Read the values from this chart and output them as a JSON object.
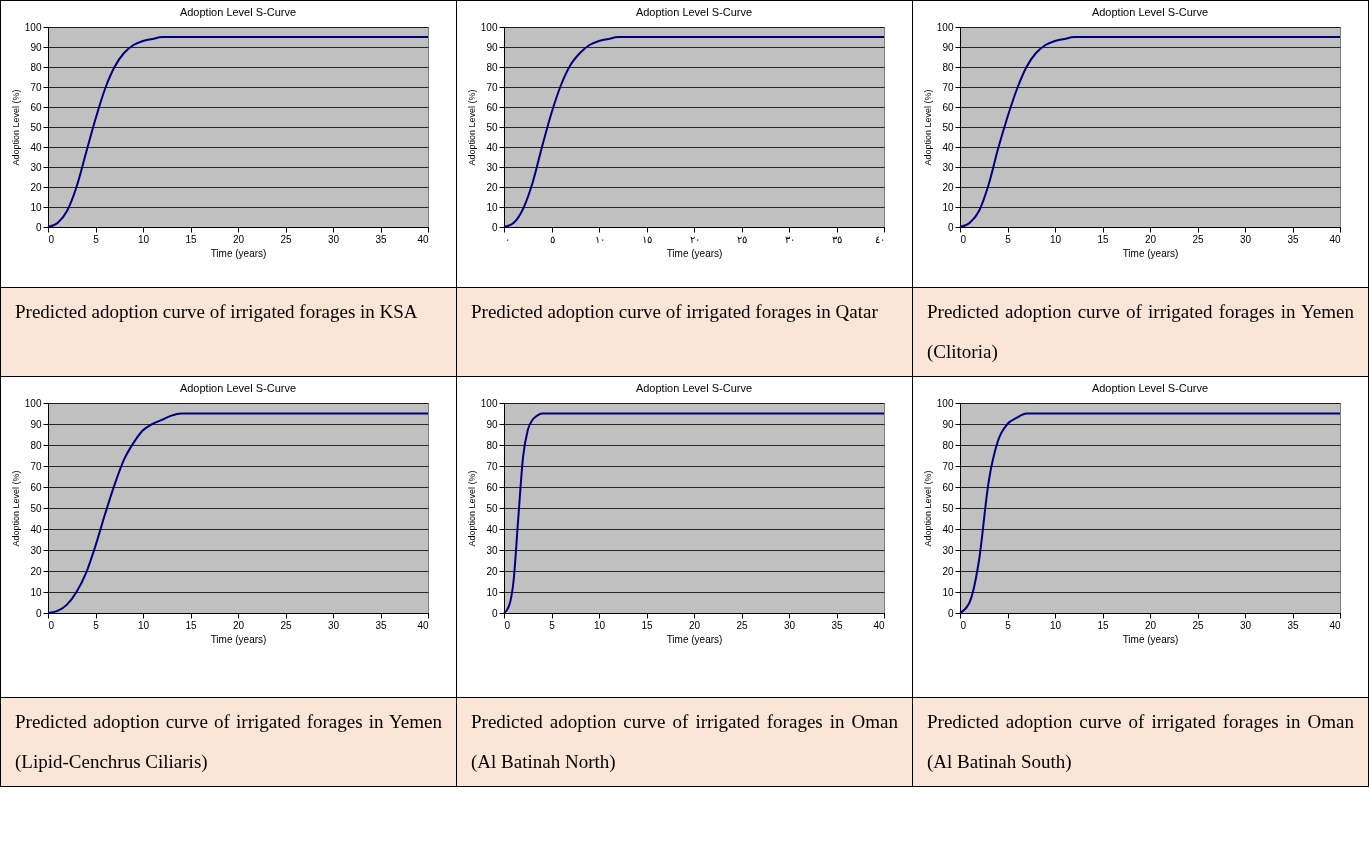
{
  "chart_data": [
    {
      "type": "line",
      "title": "Adoption Level S-Curve",
      "xlabel": "Time (years)",
      "ylabel": "Adoption Level (%)",
      "x": [
        0,
        1,
        2,
        3,
        4,
        5,
        6,
        7,
        8,
        9,
        10,
        11,
        12,
        13,
        15,
        20,
        40
      ],
      "series": [
        {
          "color": "#000080",
          "values": [
            0,
            2,
            8,
            20,
            37,
            54,
            69,
            80,
            87,
            91,
            93,
            94,
            95,
            95,
            95,
            95,
            95
          ]
        }
      ],
      "xlim": [
        0,
        40
      ],
      "ylim": [
        0,
        100
      ],
      "xticks": [
        0,
        5,
        10,
        15,
        20,
        25,
        30,
        35,
        40
      ],
      "yticks": [
        0,
        10,
        20,
        30,
        40,
        50,
        60,
        70,
        80,
        90,
        100
      ],
      "grid": "y",
      "annotations": [
        "Predicted adoption curve of irrigated forages in KSA"
      ]
    },
    {
      "type": "line",
      "title": "Adoption Level S-Curve",
      "xlabel": "Time (years)",
      "ylabel": "Adoption Level (%)",
      "x": [
        0,
        1,
        2,
        3,
        4,
        5,
        6,
        7,
        8,
        9,
        10,
        11,
        12,
        13,
        15,
        20,
        40
      ],
      "series": [
        {
          "color": "#000080",
          "values": [
            0,
            2,
            9,
            22,
            40,
            57,
            71,
            81,
            87,
            91,
            93,
            94,
            95,
            95,
            95,
            95,
            95
          ]
        }
      ],
      "xlim": [
        0,
        40
      ],
      "ylim": [
        0,
        100
      ],
      "xticks": [
        {
          "value": 0,
          "label": "٠"
        },
        {
          "value": 5,
          "label": "٥"
        },
        {
          "value": 10,
          "label": "١٠"
        },
        {
          "value": 15,
          "label": "١٥"
        },
        {
          "value": 20,
          "label": "٢٠"
        },
        {
          "value": 25,
          "label": "٢٥"
        },
        {
          "value": 30,
          "label": "٣٠"
        },
        {
          "value": 35,
          "label": "٣٥"
        },
        {
          "value": 40,
          "label": "٤٠"
        }
      ],
      "yticks": [
        0,
        10,
        20,
        30,
        40,
        50,
        60,
        70,
        80,
        90,
        100
      ],
      "grid": "y",
      "annotations": [
        "Predicted adoption curve of irrigated forages in Qatar"
      ]
    },
    {
      "type": "line",
      "title": "Adoption Level S-Curve",
      "xlabel": "Time (years)",
      "ylabel": "Adoption Level (%)",
      "x": [
        0,
        1,
        2,
        3,
        4,
        5,
        6,
        7,
        8,
        9,
        10,
        11,
        12,
        13,
        15,
        20,
        40
      ],
      "series": [
        {
          "color": "#000080",
          "values": [
            0,
            2,
            8,
            21,
            39,
            55,
            69,
            80,
            87,
            91,
            93,
            94,
            95,
            95,
            95,
            95,
            95
          ]
        }
      ],
      "xlim": [
        0,
        40
      ],
      "ylim": [
        0,
        100
      ],
      "xticks": [
        0,
        5,
        10,
        15,
        20,
        25,
        30,
        35,
        40
      ],
      "yticks": [
        0,
        10,
        20,
        30,
        40,
        50,
        60,
        70,
        80,
        90,
        100
      ],
      "grid": "y",
      "annotations": [
        "Predicted adoption curve of irrigated forages in Yemen (Clitoria)"
      ]
    },
    {
      "type": "line",
      "title": "Adoption Level S-Curve",
      "xlabel": "Time (years)",
      "ylabel": "Adoption Level (%)",
      "x": [
        0,
        1,
        2,
        3,
        4,
        5,
        6,
        7,
        8,
        9,
        10,
        11,
        12,
        13,
        14,
        16,
        20,
        40
      ],
      "series": [
        {
          "color": "#000080",
          "values": [
            0,
            1,
            4,
            10,
            19,
            32,
            47,
            61,
            73,
            81,
            87,
            90,
            92,
            94,
            95,
            95,
            95,
            95
          ]
        }
      ],
      "xlim": [
        0,
        40
      ],
      "ylim": [
        0,
        100
      ],
      "xticks": [
        0,
        5,
        10,
        15,
        20,
        25,
        30,
        35,
        40
      ],
      "yticks": [
        0,
        10,
        20,
        30,
        40,
        50,
        60,
        70,
        80,
        90,
        100
      ],
      "grid": "y",
      "annotations": [
        "Predicted adoption curve of irrigated forages in Yemen (Lipid-Cenchrus Ciliaris)"
      ]
    },
    {
      "type": "line",
      "title": "Adoption Level S-Curve",
      "xlabel": "Time (years)",
      "ylabel": "Adoption Level (%)",
      "x": [
        0,
        0.5,
        1,
        1.5,
        2,
        2.5,
        3,
        3.5,
        4,
        5,
        10,
        40
      ],
      "series": [
        {
          "color": "#000080",
          "values": [
            0,
            3,
            15,
            45,
            74,
            87,
            92,
            94,
            95,
            95,
            95,
            95
          ]
        }
      ],
      "xlim": [
        0,
        40
      ],
      "ylim": [
        0,
        100
      ],
      "xticks": [
        0,
        5,
        10,
        15,
        20,
        25,
        30,
        35,
        40
      ],
      "yticks": [
        0,
        10,
        20,
        30,
        40,
        50,
        60,
        70,
        80,
        90,
        100
      ],
      "grid": "y",
      "annotations": [
        "Predicted adoption curve of irrigated forages in Oman (Al Batinah North)"
      ]
    },
    {
      "type": "line",
      "title": "Adoption Level S-Curve",
      "xlabel": "Time (years)",
      "ylabel": "Adoption Level (%)",
      "x": [
        0,
        1,
        2,
        3,
        4,
        5,
        6,
        7,
        8,
        10,
        40
      ],
      "series": [
        {
          "color": "#000080",
          "values": [
            0,
            5,
            25,
            62,
            82,
            90,
            93,
            95,
            95,
            95,
            95
          ]
        }
      ],
      "xlim": [
        0,
        40
      ],
      "ylim": [
        0,
        100
      ],
      "xticks": [
        0,
        5,
        10,
        15,
        20,
        25,
        30,
        35,
        40
      ],
      "yticks": [
        0,
        10,
        20,
        30,
        40,
        50,
        60,
        70,
        80,
        90,
        100
      ],
      "grid": "y",
      "annotations": [
        "Predicted adoption curve of irrigated forages in Oman (Al Batinah South)"
      ]
    }
  ]
}
